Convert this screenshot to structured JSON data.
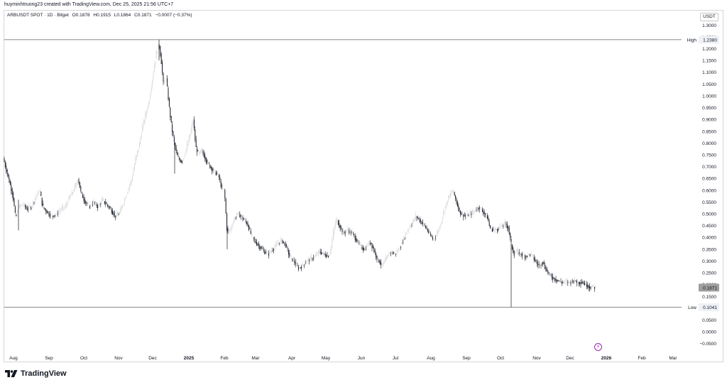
{
  "header": {
    "text": "huyminhtruong23 created with TradingView.com, Dec 25, 2025 21:56 UTC+7"
  },
  "legend": {
    "symbol": "ARBUSDT SPOT · 1D · Bitget",
    "open": "O0.1878",
    "high": "H0.1915",
    "low": "L0.1864",
    "close": "C0.1871",
    "change": "−0.0007 (−0.37%)"
  },
  "currency_label": "USDT",
  "brand": {
    "name": "TradingView"
  },
  "colors": {
    "up": "#d9d9d9",
    "down": "#131722",
    "axis_text": "#131722",
    "line": "#131722",
    "price_badge": "#9e9e9e",
    "accent": "#9c27b0"
  },
  "chart_data": {
    "type": "candlestick",
    "title": "ARBUSDT SPOT · 1D · Bitget",
    "y_axis": {
      "unit": "USDT",
      "ticks": [
        "1.3000",
        "1.2500",
        "1.2000",
        "1.1500",
        "1.1000",
        "1.0500",
        "1.0000",
        "0.9500",
        "0.9000",
        "0.8500",
        "0.8000",
        "0.7500",
        "0.7000",
        "0.6500",
        "0.6000",
        "0.5500",
        "0.5000",
        "0.4500",
        "0.4000",
        "0.3500",
        "0.3000",
        "0.2500",
        "0.2000",
        "0.1500",
        "0.1000",
        "0.0500",
        "0.0000",
        "−0.0500"
      ],
      "range": [
        -0.06,
        1.31
      ]
    },
    "x_axis": {
      "ticks": [
        "Aug",
        "Sep",
        "Oct",
        "Nov",
        "Dec",
        "2025",
        "Feb",
        "Mar",
        "Apr",
        "May",
        "Jun",
        "Jul",
        "Aug",
        "Sep",
        "Oct",
        "Nov",
        "Dec",
        "2026",
        "Feb",
        "Mar"
      ],
      "bold_ticks": [
        "2025",
        "2026"
      ]
    },
    "markers": {
      "high": {
        "label": "High",
        "value": 1.238,
        "text": "1.2380"
      },
      "low": {
        "label": "Low",
        "value": 0.1041,
        "text": "0.1041"
      },
      "last": {
        "value": 0.1871,
        "text": "0.1871"
      }
    },
    "path": [
      [
        0,
        0.78
      ],
      [
        6,
        0.72
      ],
      [
        12,
        0.65
      ],
      [
        18,
        0.58
      ],
      [
        22,
        0.48
      ],
      [
        26,
        0.53
      ],
      [
        33,
        0.54
      ],
      [
        38,
        0.52
      ],
      [
        44,
        0.53
      ],
      [
        50,
        0.57
      ],
      [
        56,
        0.6
      ],
      [
        60,
        0.53
      ],
      [
        66,
        0.51
      ],
      [
        72,
        0.49
      ],
      [
        80,
        0.5
      ],
      [
        86,
        0.52
      ],
      [
        92,
        0.53
      ],
      [
        98,
        0.57
      ],
      [
        104,
        0.6
      ],
      [
        110,
        0.65
      ],
      [
        114,
        0.59
      ],
      [
        120,
        0.55
      ],
      [
        126,
        0.53
      ],
      [
        132,
        0.55
      ],
      [
        138,
        0.53
      ],
      [
        144,
        0.56
      ],
      [
        150,
        0.54
      ],
      [
        156,
        0.52
      ],
      [
        162,
        0.49
      ],
      [
        168,
        0.5
      ],
      [
        174,
        0.55
      ],
      [
        180,
        0.6
      ],
      [
        186,
        0.65
      ],
      [
        190,
        0.72
      ],
      [
        196,
        0.79
      ],
      [
        200,
        0.86
      ],
      [
        205,
        0.92
      ],
      [
        210,
        0.98
      ],
      [
        216,
        1.1
      ],
      [
        220,
        1.18
      ],
      [
        224,
        1.22
      ],
      [
        227,
        1.15
      ],
      [
        230,
        1.05
      ],
      [
        234,
        1.08
      ],
      [
        238,
        0.96
      ],
      [
        242,
        0.86
      ],
      [
        246,
        0.79
      ],
      [
        250,
        0.74
      ],
      [
        256,
        0.72
      ],
      [
        262,
        0.77
      ],
      [
        268,
        0.84
      ],
      [
        272,
        0.9
      ],
      [
        276,
        0.78
      ],
      [
        280,
        0.75
      ],
      [
        284,
        0.77
      ],
      [
        290,
        0.73
      ],
      [
        296,
        0.7
      ],
      [
        302,
        0.68
      ],
      [
        308,
        0.66
      ],
      [
        312,
        0.61
      ],
      [
        316,
        0.6
      ],
      [
        320,
        0.42
      ],
      [
        324,
        0.43
      ],
      [
        330,
        0.48
      ],
      [
        336,
        0.5
      ],
      [
        342,
        0.48
      ],
      [
        348,
        0.46
      ],
      [
        354,
        0.41
      ],
      [
        360,
        0.38
      ],
      [
        366,
        0.36
      ],
      [
        372,
        0.34
      ],
      [
        378,
        0.33
      ],
      [
        384,
        0.35
      ],
      [
        390,
        0.37
      ],
      [
        396,
        0.39
      ],
      [
        402,
        0.37
      ],
      [
        408,
        0.32
      ],
      [
        414,
        0.3
      ],
      [
        420,
        0.27
      ],
      [
        426,
        0.28
      ],
      [
        432,
        0.3
      ],
      [
        438,
        0.31
      ],
      [
        444,
        0.32
      ],
      [
        450,
        0.34
      ],
      [
        456,
        0.33
      ],
      [
        462,
        0.32
      ],
      [
        466,
        0.35
      ],
      [
        470,
        0.43
      ],
      [
        474,
        0.48
      ],
      [
        478,
        0.45
      ],
      [
        484,
        0.42
      ],
      [
        490,
        0.43
      ],
      [
        496,
        0.42
      ],
      [
        502,
        0.39
      ],
      [
        508,
        0.36
      ],
      [
        514,
        0.35
      ],
      [
        518,
        0.37
      ],
      [
        522,
        0.38
      ],
      [
        526,
        0.35
      ],
      [
        530,
        0.32
      ],
      [
        534,
        0.3
      ],
      [
        538,
        0.28
      ],
      [
        542,
        0.3
      ],
      [
        546,
        0.32
      ],
      [
        550,
        0.34
      ],
      [
        556,
        0.33
      ],
      [
        562,
        0.35
      ],
      [
        568,
        0.39
      ],
      [
        574,
        0.43
      ],
      [
        580,
        0.46
      ],
      [
        586,
        0.49
      ],
      [
        592,
        0.47
      ],
      [
        598,
        0.45
      ],
      [
        604,
        0.42
      ],
      [
        610,
        0.39
      ],
      [
        616,
        0.42
      ],
      [
        620,
        0.45
      ],
      [
        626,
        0.52
      ],
      [
        632,
        0.57
      ],
      [
        638,
        0.6
      ],
      [
        642,
        0.56
      ],
      [
        646,
        0.52
      ],
      [
        650,
        0.5
      ],
      [
        656,
        0.49
      ],
      [
        662,
        0.5
      ],
      [
        668,
        0.51
      ],
      [
        674,
        0.53
      ],
      [
        680,
        0.51
      ],
      [
        686,
        0.49
      ],
      [
        690,
        0.44
      ],
      [
        696,
        0.43
      ],
      [
        702,
        0.44
      ],
      [
        708,
        0.45
      ],
      [
        712,
        0.46
      ],
      [
        716,
        0.44
      ],
      [
        720,
        0.37
      ],
      [
        724,
        0.33
      ],
      [
        728,
        0.34
      ],
      [
        734,
        0.33
      ],
      [
        740,
        0.32
      ],
      [
        746,
        0.33
      ],
      [
        750,
        0.32
      ],
      [
        756,
        0.29
      ],
      [
        760,
        0.28
      ],
      [
        764,
        0.3
      ],
      [
        768,
        0.27
      ],
      [
        772,
        0.25
      ],
      [
        778,
        0.23
      ],
      [
        784,
        0.22
      ],
      [
        790,
        0.21
      ],
      [
        796,
        0.21
      ],
      [
        802,
        0.21
      ],
      [
        808,
        0.22
      ],
      [
        814,
        0.21
      ],
      [
        820,
        0.21
      ],
      [
        826,
        0.2
      ],
      [
        830,
        0.19
      ],
      [
        836,
        0.19
      ],
      [
        840,
        0.1871
      ]
    ],
    "wicks": [
      {
        "x": 26,
        "high": 0.56,
        "low": 0.43
      },
      {
        "x": 224,
        "high": 1.238,
        "low": 1.15
      },
      {
        "x": 246,
        "high": 0.8,
        "low": 0.67
      },
      {
        "x": 320,
        "high": 0.44,
        "low": 0.35
      },
      {
        "x": 720,
        "high": 0.37,
        "low": 0.1041
      }
    ]
  }
}
